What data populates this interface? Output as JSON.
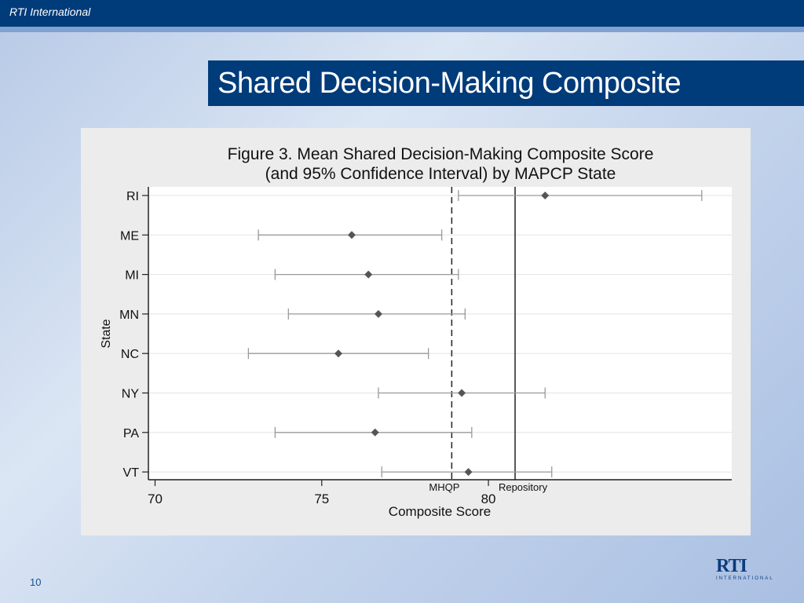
{
  "header": {
    "org": "RTI International"
  },
  "slide": {
    "title": "Shared Decision-Making Composite",
    "page_number": "10"
  },
  "logo": {
    "main": "RTI",
    "sub": "INTERNATIONAL"
  },
  "colors": {
    "header_bar": "#003b7a",
    "marker": "#555555",
    "ci_line": "#9a9a9a"
  },
  "chart_data": {
    "type": "scatter",
    "title": "Figure 3. Mean Shared Decision-Making Composite Score",
    "subtitle": "(and 95% Confidence Interval) by MAPCP State",
    "xlabel": "Composite Score",
    "ylabel": "State",
    "xlim": [
      69.8,
      87.3
    ],
    "xticks": [
      70,
      75,
      80
    ],
    "grid": true,
    "categories": [
      "RI",
      "ME",
      "MI",
      "MN",
      "NC",
      "NY",
      "PA",
      "VT"
    ],
    "mean": [
      81.7,
      75.9,
      76.4,
      76.7,
      75.5,
      79.2,
      76.6,
      79.4
    ],
    "ci_low": [
      79.1,
      73.1,
      73.6,
      74.0,
      72.8,
      76.7,
      73.6,
      76.8
    ],
    "ci_high": [
      86.4,
      78.6,
      79.1,
      79.3,
      78.2,
      81.7,
      79.5,
      81.9
    ],
    "reference_lines": [
      {
        "name": "MHQP",
        "value": 78.9,
        "style": "dashed"
      },
      {
        "name": "Repository",
        "value": 80.8,
        "style": "solid"
      }
    ]
  }
}
